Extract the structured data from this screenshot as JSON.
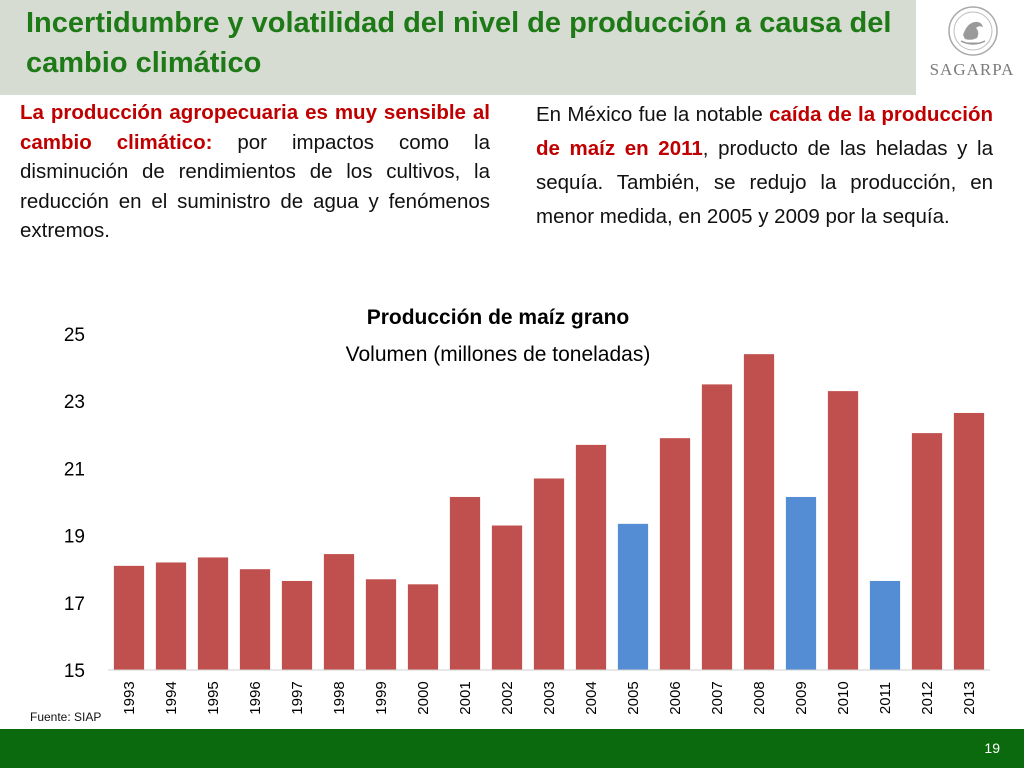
{
  "header": {
    "title": "Incertidumbre y volatilidad del nivel de producción a causa del cambio climático"
  },
  "logo": {
    "wordmark": "SAGARPA",
    "seal_icon": "mexico-coat-of-arms-seal"
  },
  "left_text": {
    "highlight": "La producción agropecuaria es muy sensible al cambio climático:",
    "body": " por impactos como la disminución de rendimientos de los cultivos, la reducción en el suministro de agua y fenómenos extremos."
  },
  "right_text": {
    "prefix": "En México fue la notable ",
    "highlight": "caída de la producción de maíz en 2011",
    "suffix": ", producto de las heladas y la sequía. También, se redujo la producción, en menor medida, en 2005 y 2009 por la sequía."
  },
  "chart_data": {
    "type": "bar",
    "title": "Producción de maíz grano",
    "subtitle": "Volumen (millones de toneladas)",
    "categories": [
      "1993",
      "1994",
      "1995",
      "1996",
      "1997",
      "1998",
      "1999",
      "2000",
      "2001",
      "2002",
      "2003",
      "2004",
      "2005",
      "2006",
      "2007",
      "2008",
      "2009",
      "2010",
      "2011",
      "2012",
      "2013"
    ],
    "values": [
      18.1,
      18.2,
      18.35,
      18.0,
      17.65,
      18.45,
      17.7,
      17.55,
      20.15,
      19.3,
      20.7,
      21.7,
      19.35,
      21.9,
      23.5,
      24.4,
      20.15,
      23.3,
      17.65,
      22.05,
      22.65
    ],
    "highlighted_years": [
      "2005",
      "2009",
      "2011"
    ],
    "ylim": [
      15,
      25
    ],
    "yticks": [
      15,
      17,
      19,
      21,
      23,
      25
    ],
    "grid": false,
    "legend": "none",
    "colors": {
      "default": "#c0504d",
      "highlight": "#548dd4"
    }
  },
  "source": "Fuente: SIAP",
  "footer": {
    "page_number": "19",
    "color": "#0a6a0d"
  }
}
